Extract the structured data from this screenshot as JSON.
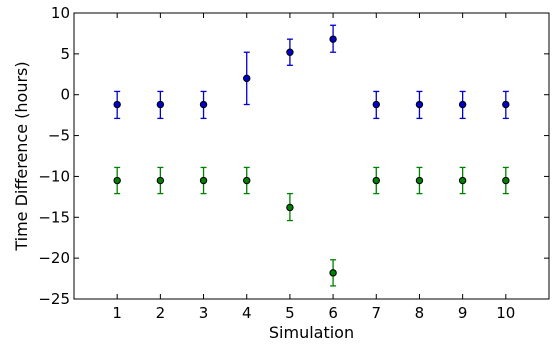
{
  "chart_data": {
    "type": "scatter",
    "xlabel": "Simulation",
    "ylabel": "Time Difference (hours)",
    "xlim": [
      0,
      11
    ],
    "ylim": [
      -25,
      10
    ],
    "x_ticks": [
      1,
      2,
      3,
      4,
      5,
      6,
      7,
      8,
      9,
      10
    ],
    "y_ticks": [
      -25,
      -20,
      -15,
      -10,
      -5,
      0,
      5,
      10
    ],
    "x_tick_labels": [
      "1",
      "2",
      "3",
      "4",
      "5",
      "6",
      "7",
      "8",
      "9",
      "10"
    ],
    "y_tick_labels": [
      "−25",
      "−20",
      "−15",
      "−10",
      "−5",
      "0",
      "5",
      "10"
    ],
    "grid": false,
    "legend": "none",
    "series": [
      {
        "color": "#0000cc",
        "x": [
          1,
          2,
          3,
          4,
          5,
          6,
          7,
          8,
          9,
          10
        ],
        "y": [
          -1.2,
          -1.2,
          -1.2,
          2.0,
          5.2,
          6.8,
          -1.2,
          -1.2,
          -1.2,
          -1.2
        ],
        "err_low": [
          -2.9,
          -2.9,
          -2.9,
          -1.2,
          3.6,
          5.2,
          -2.9,
          -2.9,
          -2.9,
          -2.9
        ],
        "err_high": [
          0.4,
          0.4,
          0.4,
          5.2,
          6.8,
          8.5,
          0.4,
          0.4,
          0.4,
          0.4
        ]
      },
      {
        "color": "#008000",
        "x": [
          1,
          2,
          3,
          4,
          5,
          6,
          7,
          8,
          9,
          10
        ],
        "y": [
          -10.5,
          -10.5,
          -10.5,
          -10.5,
          -13.8,
          -21.8,
          -10.5,
          -10.5,
          -10.5,
          -10.5
        ],
        "err_low": [
          -12.1,
          -12.1,
          -12.1,
          -12.1,
          -15.4,
          -23.4,
          -12.1,
          -12.1,
          -12.1,
          -12.1
        ],
        "err_high": [
          -8.9,
          -8.9,
          -8.9,
          -8.9,
          -12.1,
          -20.2,
          -8.9,
          -8.9,
          -8.9,
          -8.9
        ]
      }
    ]
  }
}
